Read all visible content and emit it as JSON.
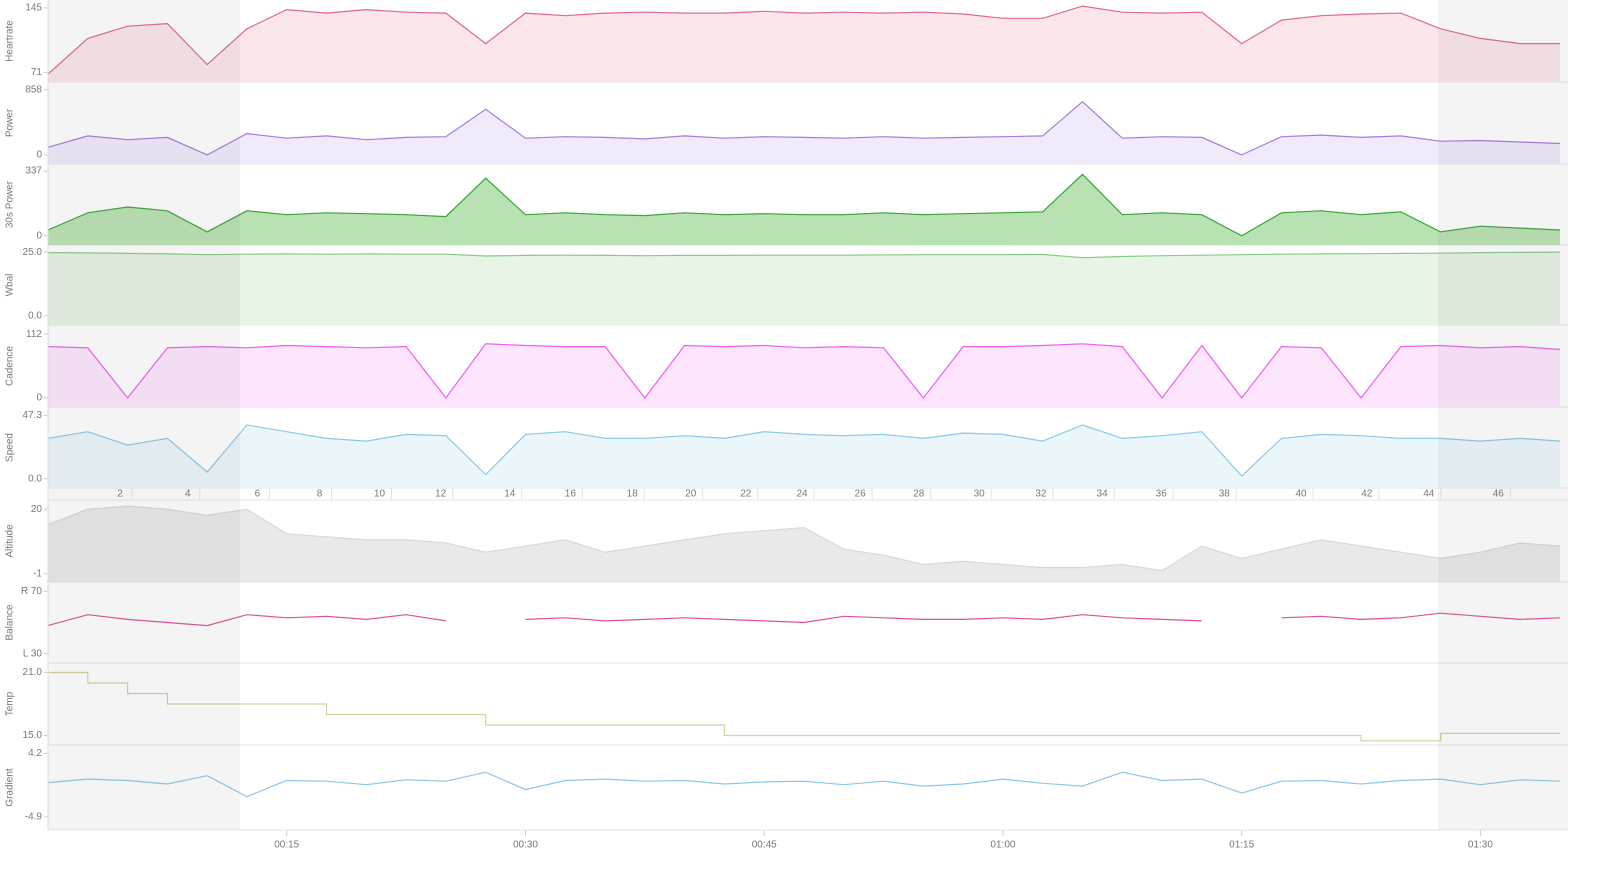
{
  "chart_data": {
    "type": "line",
    "x": [
      0,
      2.5,
      5,
      7.5,
      10,
      12.5,
      15,
      17.5,
      20,
      22.5,
      25,
      27.5,
      30,
      32.5,
      35,
      37.5,
      40,
      42.5,
      45,
      47.5,
      50,
      52.5,
      55,
      57.5,
      60,
      62.5,
      65,
      67.5,
      70,
      72.5,
      75,
      77.5,
      80,
      82.5,
      85,
      87.5,
      90,
      92.5,
      95
    ],
    "xlim": [
      0,
      95
    ],
    "xticks": [
      {
        "value": 15,
        "label": "00:15"
      },
      {
        "value": 30,
        "label": "00:30"
      },
      {
        "value": 45,
        "label": "00:45"
      },
      {
        "value": 60,
        "label": "01:00"
      },
      {
        "value": 75,
        "label": "01:15"
      },
      {
        "value": 90,
        "label": "01:30"
      }
    ],
    "distance": [
      0,
      0.9,
      2.26,
      3.41,
      4.56,
      5.67,
      6.92,
      8.23,
      9.57,
      10.87,
      12.17,
      13.28,
      14.47,
      15.83,
      17.16,
      18.39,
      19.78,
      21.22,
      22.67,
      24.07,
      25.45,
      26.79,
      28.16,
      29.48,
      30.77,
      32.06,
      33.34,
      34.68,
      36.03,
      37.37,
      38.49,
      39.46,
      40.56,
      41.81,
      43.13,
      44.37,
      45.51,
      46.6,
      47.7
    ],
    "distance_ticks": [
      2,
      4,
      6,
      8,
      10,
      12,
      14,
      16,
      18,
      20,
      22,
      24,
      26,
      28,
      30,
      32,
      34,
      36,
      38,
      40,
      42,
      44,
      46
    ],
    "panels": [
      {
        "type": "area",
        "y_label": "Heartrate",
        "color": "#e06a86",
        "fill": "#fbe6eb",
        "ylim": [
          60,
          154
        ],
        "yticks": [
          145,
          71
        ],
        "values": [
          69,
          110,
          124,
          127,
          80,
          121,
          143,
          139,
          143,
          140,
          139,
          104,
          139,
          136,
          139,
          140,
          139,
          139,
          141,
          139,
          140,
          139,
          140,
          138,
          133,
          133,
          147,
          140,
          139,
          140,
          104,
          131,
          136,
          138,
          139,
          121,
          110,
          104,
          104
        ]
      },
      {
        "type": "area",
        "y_label": "Power",
        "color": "#a67bdc",
        "fill": "#f1eafb",
        "ylim": [
          -120,
          960
        ],
        "yticks": [
          858,
          0
        ],
        "values": [
          100,
          250,
          200,
          230,
          0,
          280,
          220,
          250,
          200,
          230,
          240,
          600,
          220,
          240,
          230,
          210,
          250,
          220,
          240,
          230,
          220,
          240,
          220,
          230,
          240,
          250,
          700,
          220,
          240,
          230,
          0,
          240,
          260,
          230,
          250,
          180,
          190,
          170,
          150
        ]
      },
      {
        "type": "area",
        "y_label": "30s Power",
        "color": "#3aa43a",
        "fill": "#b9e2b2",
        "ylim": [
          -48,
          374
        ],
        "yticks": [
          337,
          0
        ],
        "values": [
          30,
          120,
          150,
          130,
          20,
          130,
          110,
          120,
          115,
          110,
          100,
          300,
          110,
          120,
          110,
          105,
          120,
          110,
          115,
          110,
          110,
          120,
          110,
          115,
          120,
          125,
          320,
          110,
          120,
          110,
          0,
          120,
          130,
          110,
          125,
          20,
          50,
          40,
          30
        ]
      },
      {
        "type": "area",
        "y_label": "Wbal",
        "color": "#8cc88c",
        "fill": "#e8f4e5",
        "ylim": [
          -3.6,
          27.8
        ],
        "yticks": [
          {
            "value": 25,
            "label": "25.0"
          },
          {
            "value": 0,
            "label": "0.0"
          }
        ],
        "values": [
          24.8,
          24.7,
          24.5,
          24.3,
          24.0,
          24.2,
          24.3,
          24.2,
          24.3,
          24.2,
          24.2,
          23.5,
          23.7,
          23.8,
          23.7,
          23.6,
          23.7,
          23.7,
          23.8,
          23.8,
          23.8,
          23.9,
          24.0,
          24.0,
          24.0,
          24.1,
          22.8,
          23.3,
          23.6,
          23.8,
          24.0,
          24.2,
          24.3,
          24.4,
          24.5,
          24.6,
          24.8,
          24.9,
          25.0
        ]
      },
      {
        "type": "area",
        "y_label": "Cadence",
        "color": "#ee5fee",
        "fill": "#fde6fd",
        "ylim": [
          -16,
          128
        ],
        "yticks": [
          112,
          0
        ],
        "values": [
          90,
          88,
          0,
          88,
          90,
          88,
          92,
          90,
          88,
          90,
          0,
          95,
          92,
          90,
          90,
          0,
          92,
          90,
          92,
          88,
          90,
          88,
          0,
          90,
          90,
          92,
          95,
          90,
          0,
          92,
          0,
          90,
          88,
          0,
          90,
          92,
          88,
          90,
          85
        ]
      },
      {
        "type": "area",
        "y_label": "Speed",
        "color": "#8ac9e8",
        "fill": "#ebf6fb",
        "ylim": [
          -6.9,
          53.4
        ],
        "yticks": [
          47.3,
          {
            "value": 0,
            "label": "0.0"
          }
        ],
        "values": [
          30,
          35,
          25,
          30,
          5,
          40,
          35,
          30,
          28,
          33,
          32,
          3,
          33,
          35,
          30,
          30,
          32,
          30,
          35,
          33,
          32,
          33,
          30,
          34,
          33,
          28,
          40,
          30,
          32,
          35,
          2,
          30,
          33,
          32,
          30,
          30,
          28,
          30,
          28
        ]
      },
      {
        "type": "area",
        "y_label": "Altitude",
        "color": "#d8d8d8",
        "fill": "#e9e9e9",
        "ylim": [
          -3.7,
          23
        ],
        "yticks": [
          20,
          -1
        ],
        "values": [
          15,
          20,
          21,
          20,
          18,
          20,
          12,
          11,
          10,
          10,
          9,
          6,
          8,
          10,
          6,
          8,
          10,
          12,
          13,
          14,
          7,
          5,
          2,
          3,
          2,
          1,
          1,
          2,
          0,
          8,
          4,
          7,
          10,
          8,
          6,
          4,
          6,
          9,
          8
        ]
      },
      {
        "type": "line",
        "y_label": "Balance",
        "color": "#e0509a",
        "ylim": [
          24,
          76
        ],
        "yticks": [
          {
            "value": 70,
            "label": "R 70"
          },
          {
            "value": 30,
            "label": "L 30"
          }
        ],
        "values": [
          48,
          55,
          52,
          50,
          48,
          55,
          53,
          54,
          52,
          55,
          51,
          null,
          52,
          53,
          51,
          52,
          53,
          52,
          51,
          50,
          54,
          53,
          52,
          52,
          53,
          52,
          55,
          53,
          52,
          51,
          null,
          53,
          54,
          52,
          53,
          56,
          54,
          52,
          53
        ]
      },
      {
        "type": "step",
        "y_label": "Temp",
        "color": "#d6cfa0",
        "ylim": [
          14.1,
          21.9
        ],
        "yticks": [
          {
            "value": 21,
            "label": "21.0"
          },
          {
            "value": 15,
            "label": "15.0"
          }
        ],
        "values": [
          21,
          20,
          19,
          18,
          18,
          18,
          18,
          17,
          17,
          17,
          17,
          16,
          16,
          16,
          16,
          16,
          16,
          15,
          15,
          15,
          15,
          15,
          15,
          15,
          15,
          15,
          15,
          15,
          15,
          15,
          15,
          15,
          15,
          14.5,
          14.5,
          15.2,
          15.2,
          15.2,
          15.2
        ]
      },
      {
        "type": "line",
        "y_label": "Gradient",
        "color": "#8cc7e6",
        "ylim": [
          -6.8,
          5.4
        ],
        "yticks": [
          4.2,
          -4.9
        ],
        "values": [
          0,
          0.5,
          0.3,
          -0.2,
          1,
          -2,
          0.3,
          0.2,
          -0.3,
          0.4,
          0.2,
          1.5,
          -1,
          0.3,
          0.5,
          0.2,
          0.3,
          -0.2,
          0.1,
          0.2,
          -0.3,
          0.2,
          -0.5,
          -0.2,
          0.5,
          -0.1,
          -0.5,
          1.5,
          0.3,
          0.5,
          -1.5,
          0.2,
          0.3,
          -0.2,
          0.3,
          0.5,
          -0.3,
          0.4,
          0.2
        ]
      }
    ]
  }
}
